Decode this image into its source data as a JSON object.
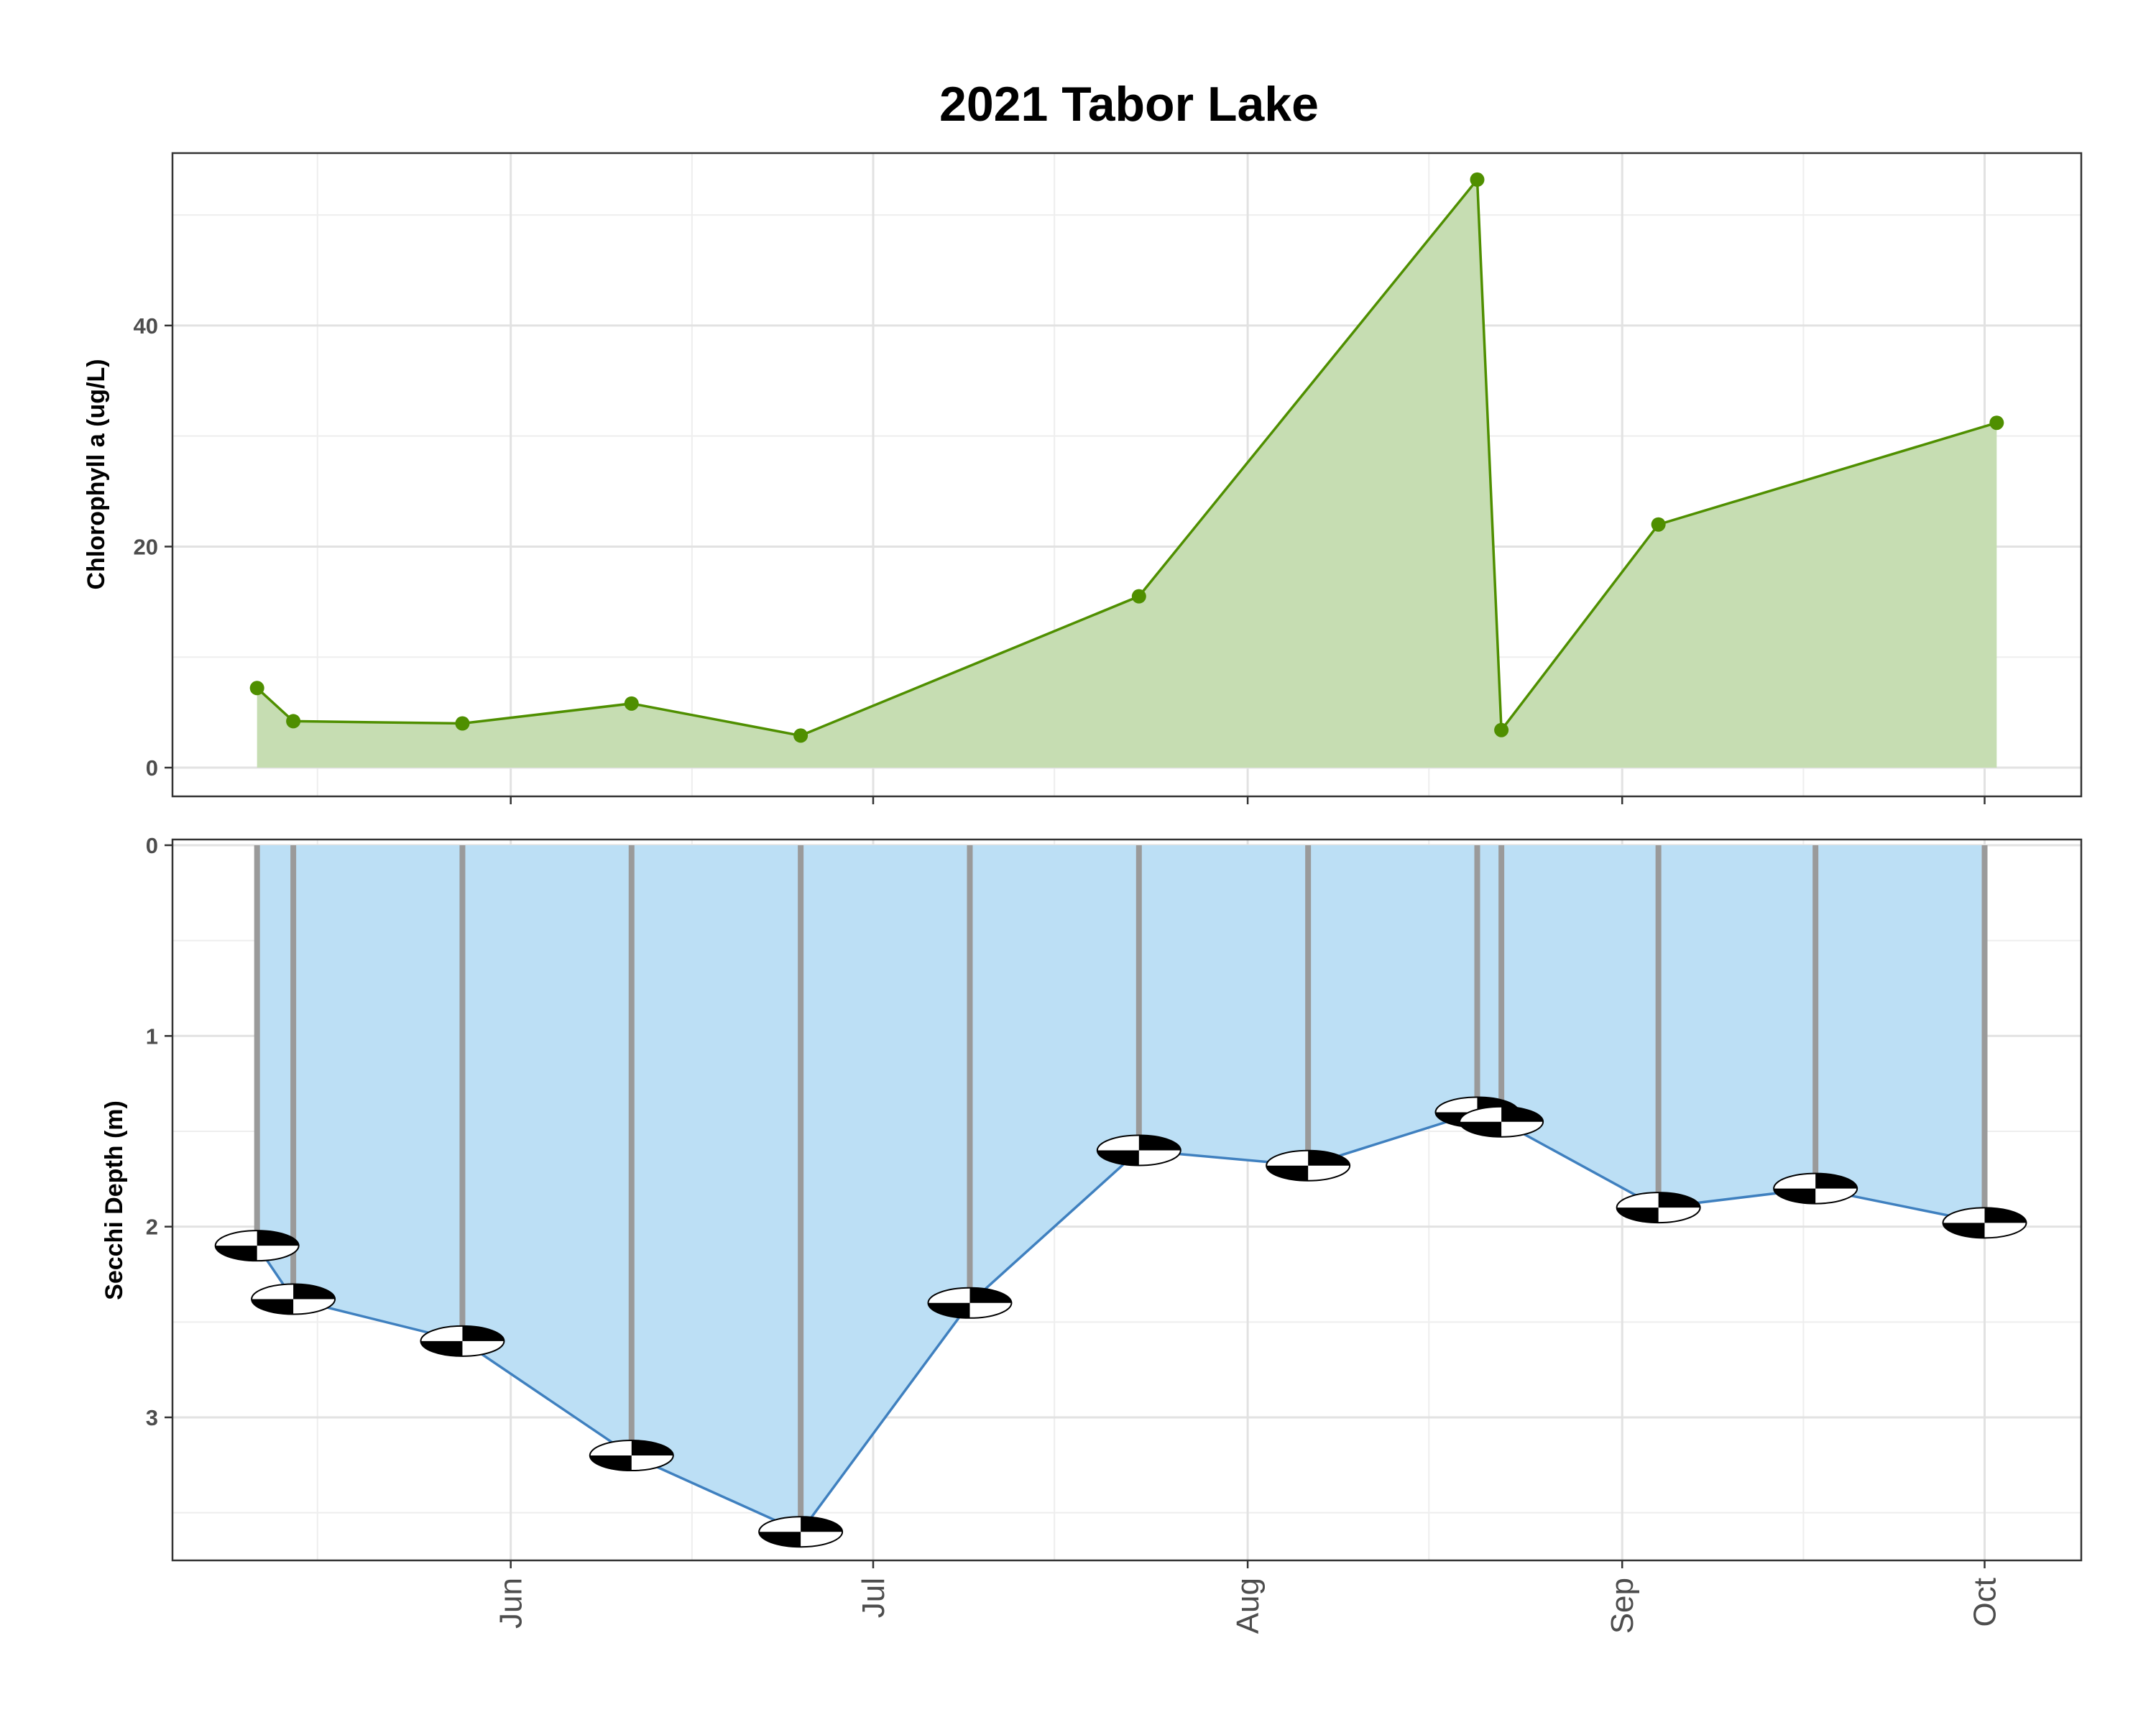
{
  "chart_data": [
    {
      "type": "area",
      "panel": "chlorophyll",
      "title": "2021 Tabor Lake",
      "ylabel": "Chlorophyll a (ug/L)",
      "xlabel": "",
      "ylim": [
        -2.6,
        55.6
      ],
      "yticks": [
        0,
        20,
        40
      ],
      "x": [
        "2021-05-11",
        "2021-05-14",
        "2021-05-28",
        "2021-06-11",
        "2021-06-25",
        "2021-07-23",
        "2021-08-20",
        "2021-08-22",
        "2021-09-04",
        "2021-10-02"
      ],
      "values": [
        7.2,
        4.2,
        4.0,
        5.8,
        2.9,
        15.5,
        53.2,
        3.4,
        22.0,
        31.2
      ],
      "color": "#4f8f00",
      "fill": "#c6ddb2",
      "grid": true
    },
    {
      "type": "area",
      "panel": "secchi",
      "ylabel": "Secchi Depth (m)",
      "xlabel": "",
      "ylim": [
        3.75,
        -0.03
      ],
      "yticks": [
        0,
        1,
        2,
        3
      ],
      "x": [
        "2021-05-11",
        "2021-05-14",
        "2021-05-28",
        "2021-06-11",
        "2021-06-25",
        "2021-07-09",
        "2021-07-23",
        "2021-08-06",
        "2021-08-20",
        "2021-08-22",
        "2021-09-04",
        "2021-09-17",
        "2021-10-01"
      ],
      "values": [
        2.1,
        2.38,
        2.6,
        3.2,
        3.6,
        2.4,
        1.6,
        1.68,
        1.4,
        1.45,
        1.9,
        1.8,
        1.98
      ],
      "color": "#3f80bf",
      "fill": "#bcdff5",
      "rope_color": "#9a9a9a",
      "marker": "secchi-disk",
      "grid": true
    }
  ],
  "x_axis": {
    "range": [
      "2021-05-04",
      "2021-10-09"
    ],
    "ticks": [
      {
        "date": "2021-06-01",
        "label": "Jun"
      },
      {
        "date": "2021-07-01",
        "label": "Jul"
      },
      {
        "date": "2021-08-01",
        "label": "Aug"
      },
      {
        "date": "2021-09-01",
        "label": "Sep"
      },
      {
        "date": "2021-10-01",
        "label": "Oct"
      }
    ]
  }
}
